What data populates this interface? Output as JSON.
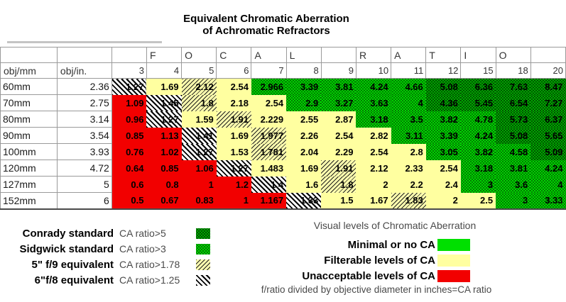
{
  "title": {
    "line1": "Equivalent Chromatic Aberration",
    "line2": "of Achromatic Refractors"
  },
  "chart_data": {
    "type": "table",
    "title": "Equivalent Chromatic Aberration of Achromatic Refractors",
    "letters": [
      "",
      "F",
      "O",
      "C",
      "A",
      "L",
      "",
      "R",
      "A",
      "T",
      "I",
      "O",
      ""
    ],
    "row_headers": [
      "obj/mm",
      "obj/in."
    ],
    "columns": [
      "3",
      "4",
      "5",
      "6",
      "7",
      "8",
      "9",
      "10",
      "11",
      "12",
      "15",
      "18",
      "20"
    ],
    "rows": [
      {
        "obj_mm": "60mm",
        "obj_in": "2.36",
        "values": [
          "1.27",
          "1.69",
          "2.12",
          "2.54",
          "2.966",
          "3.39",
          "3.81",
          "4.24",
          "4.66",
          "5.08",
          "6.36",
          "7.63",
          "8.47"
        ],
        "styles": [
          "h68",
          "yellow",
          "h59",
          "yellow",
          "green",
          "green",
          "green",
          "green",
          "green",
          "dgreen",
          "dgreen",
          "dgreen",
          "dgreen"
        ]
      },
      {
        "obj_mm": "70mm",
        "obj_in": "2.75",
        "values": [
          "1.09",
          "1.45",
          "1.8",
          "2.18",
          "2.54",
          "2.9",
          "3.27",
          "3.63",
          "4",
          "4.36",
          "5.45",
          "6.54",
          "7.27"
        ],
        "styles": [
          "red",
          "h68",
          "h59",
          "yellow",
          "yellow",
          "green",
          "green",
          "green",
          "green",
          "dgreen",
          "dgreen",
          "dgreen",
          "dgreen"
        ]
      },
      {
        "obj_mm": "80mm",
        "obj_in": "3.14",
        "values": [
          "0.96",
          "1.27",
          "1.59",
          "1.91",
          "2.229",
          "2.55",
          "2.87",
          "3.18",
          "3.5",
          "3.82",
          "4.78",
          "5.73",
          "6.37"
        ],
        "styles": [
          "red",
          "h68",
          "yellow",
          "h59",
          "yellow",
          "yellow",
          "yellow",
          "green",
          "green",
          "green",
          "green",
          "dgreen",
          "dgreen"
        ]
      },
      {
        "obj_mm": "90mm",
        "obj_in": "3.54",
        "values": [
          "0.85",
          "1.13",
          "1.41",
          "1.69",
          "1.977",
          "2.26",
          "2.54",
          "2.82",
          "3.11",
          "3.39",
          "4.24",
          "5.08",
          "5.65"
        ],
        "styles": [
          "red",
          "red",
          "h68",
          "yellow",
          "h59",
          "yellow",
          "yellow",
          "yellow",
          "green",
          "green",
          "green",
          "dgreen",
          "dgreen"
        ]
      },
      {
        "obj_mm": "100mm",
        "obj_in": "3.93",
        "values": [
          "0.76",
          "1.02",
          "1.27",
          "1.53",
          "1.781",
          "2.04",
          "2.29",
          "2.54",
          "2.8",
          "3.05",
          "3.82",
          "4.58",
          "5.09"
        ],
        "styles": [
          "red",
          "red",
          "h68",
          "yellow",
          "h59",
          "yellow",
          "yellow",
          "yellow",
          "yellow",
          "green",
          "green",
          "green",
          "dgreen"
        ]
      },
      {
        "obj_mm": "120mm",
        "obj_in": "4.72",
        "values": [
          "0.64",
          "0.85",
          "1.06",
          "1.27",
          "1.483",
          "1.69",
          "1.91",
          "2.12",
          "2.33",
          "2.54",
          "3.18",
          "3.81",
          "4.24"
        ],
        "styles": [
          "red",
          "red",
          "red",
          "h68",
          "yellow",
          "yellow",
          "h59",
          "yellow",
          "yellow",
          "yellow",
          "green",
          "green",
          "green"
        ]
      },
      {
        "obj_mm": "127mm",
        "obj_in": "5",
        "values": [
          "0.6",
          "0.8",
          "1",
          "1.2",
          "1.4",
          "1.6",
          "1.8",
          "2",
          "2.2",
          "2.4",
          "3",
          "3.6",
          "4"
        ],
        "styles": [
          "red",
          "red",
          "red",
          "red",
          "h68",
          "yellow",
          "h59",
          "yellow",
          "yellow",
          "yellow",
          "green",
          "green",
          "green"
        ]
      },
      {
        "obj_mm": "152mm",
        "obj_in": "6",
        "values": [
          "0.5",
          "0.67",
          "0.83",
          "1",
          "1.167",
          "1.33",
          "1.5",
          "1.67",
          "1.83",
          "2",
          "2.5",
          "3",
          "3.33"
        ],
        "styles": [
          "red",
          "red",
          "red",
          "red",
          "red",
          "h68",
          "yellow",
          "yellow",
          "h59",
          "yellow",
          "yellow",
          "green",
          "green"
        ]
      }
    ]
  },
  "legend_left": {
    "items": [
      {
        "label": "Conrady standard",
        "ratio": "CA ratio>5",
        "swatch": "dgreen"
      },
      {
        "label": "Sidgwick standard",
        "ratio": "CA ratio>3",
        "swatch": "green"
      },
      {
        "label": "5\" f/9  equivalent",
        "ratio": "CA ratio>1.78",
        "swatch": "h59"
      },
      {
        "label": "6\"f/8 equivalent",
        "ratio": "CA ratio>1.25",
        "swatch": "h68"
      }
    ]
  },
  "legend_right": {
    "heading": "Visual levels of Chromatic Aberration",
    "items": [
      {
        "label": "Minimal or no CA",
        "swatch": "sol-green"
      },
      {
        "label": "Filterable levels of CA",
        "swatch": "sol-yellow"
      },
      {
        "label": "Unacceptable levels of CA",
        "swatch": "sol-red"
      }
    ],
    "note": "f/ratio divided by objective diameter in inches=CA ratio"
  },
  "colors": {
    "sidgwick_green": "#00d600",
    "conrady_dark_green": "#00a800",
    "filterable_yellow": "#ffffa0",
    "unacceptable_red": "#f20000"
  }
}
